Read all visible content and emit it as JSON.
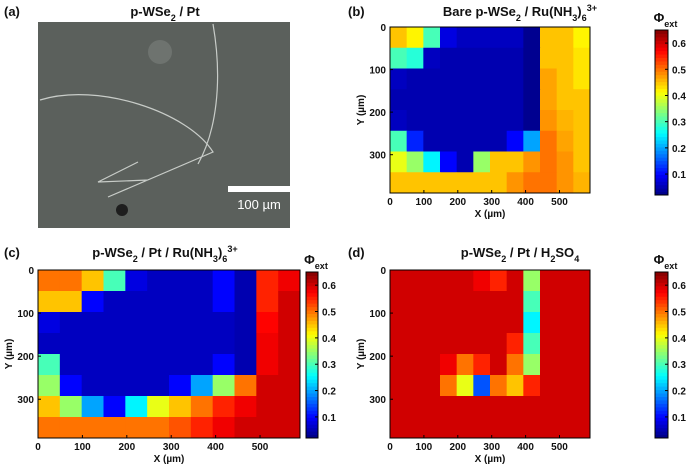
{
  "chart_data": [
    {
      "type": "image",
      "label": "(a)",
      "title": [
        {
          "text": "p-WSe"
        },
        {
          "text": "2",
          "shift": "sub"
        },
        {
          "text": " / Pt"
        }
      ],
      "scale_bar_label": "100 µm"
    },
    {
      "type": "heatmap",
      "label": "(b)",
      "title": [
        {
          "text": "Bare p-WSe"
        },
        {
          "text": "2",
          "shift": "sub"
        },
        {
          "text": " / Ru(NH"
        },
        {
          "text": "3",
          "shift": "sub"
        },
        {
          "text": ")"
        },
        {
          "text": "6",
          "shift": "sub"
        },
        {
          "text": "3+",
          "shift": "super"
        }
      ],
      "x_label": "X (µm)",
      "y_label": "Y (µm)",
      "colorbar_label": [
        {
          "text": "Φ"
        },
        {
          "text": "ext",
          "shift": "sub"
        }
      ],
      "xlim": [
        0,
        590
      ],
      "ylim": [
        0,
        390
      ],
      "xticks": [
        0,
        100,
        200,
        300,
        400,
        500
      ],
      "yticks": [
        0,
        100,
        200,
        300
      ],
      "colormap": "jet",
      "clim": [
        0.02,
        0.65
      ],
      "cticks": [
        0.1,
        0.2,
        0.3,
        0.4,
        0.5,
        0.6
      ],
      "z": [
        [
          0.45,
          0.42,
          0.3,
          0.08,
          0.06,
          0.06,
          0.06,
          0.06,
          0.03,
          0.45,
          0.45,
          0.42
        ],
        [
          0.3,
          0.28,
          0.06,
          0.05,
          0.05,
          0.05,
          0.05,
          0.05,
          0.03,
          0.45,
          0.45,
          0.43
        ],
        [
          0.06,
          0.05,
          0.05,
          0.05,
          0.05,
          0.05,
          0.05,
          0.05,
          0.03,
          0.47,
          0.45,
          0.43
        ],
        [
          0.05,
          0.05,
          0.05,
          0.05,
          0.05,
          0.05,
          0.05,
          0.05,
          0.03,
          0.47,
          0.45,
          0.45
        ],
        [
          0.06,
          0.05,
          0.05,
          0.05,
          0.05,
          0.05,
          0.05,
          0.05,
          0.03,
          0.48,
          0.46,
          0.45
        ],
        [
          0.3,
          0.12,
          0.05,
          0.05,
          0.05,
          0.05,
          0.05,
          0.1,
          0.2,
          0.5,
          0.47,
          0.45
        ],
        [
          0.4,
          0.35,
          0.25,
          0.1,
          0.05,
          0.35,
          0.45,
          0.45,
          0.48,
          0.5,
          0.48,
          0.45
        ],
        [
          0.45,
          0.45,
          0.45,
          0.45,
          0.45,
          0.45,
          0.45,
          0.48,
          0.5,
          0.5,
          0.48,
          0.46
        ]
      ]
    },
    {
      "type": "heatmap",
      "label": "(c)",
      "title": [
        {
          "text": "p-WSe"
        },
        {
          "text": "2",
          "shift": "sub"
        },
        {
          "text": " / Pt / Ru(NH"
        },
        {
          "text": "3",
          "shift": "sub"
        },
        {
          "text": ")"
        },
        {
          "text": "6",
          "shift": "sub"
        },
        {
          "text": "3+",
          "shift": "super"
        }
      ],
      "x_label": "X (µm)",
      "y_label": "Y (µm)",
      "colorbar_label": [
        {
          "text": "Φ"
        },
        {
          "text": "ext",
          "shift": "sub"
        }
      ],
      "xlim": [
        0,
        590
      ],
      "ylim": [
        0,
        390
      ],
      "xticks": [
        0,
        100,
        200,
        300,
        400,
        500
      ],
      "yticks": [
        0,
        100,
        200,
        300
      ],
      "colormap": "jet",
      "clim": [
        0.02,
        0.65
      ],
      "cticks": [
        0.1,
        0.2,
        0.3,
        0.4,
        0.5,
        0.6
      ],
      "z": [
        [
          0.5,
          0.5,
          0.45,
          0.3,
          0.08,
          0.06,
          0.06,
          0.06,
          0.1,
          0.05,
          0.55,
          0.58
        ],
        [
          0.45,
          0.45,
          0.1,
          0.06,
          0.06,
          0.06,
          0.06,
          0.06,
          0.1,
          0.05,
          0.55,
          0.6
        ],
        [
          0.08,
          0.06,
          0.06,
          0.06,
          0.06,
          0.06,
          0.06,
          0.06,
          0.06,
          0.05,
          0.57,
          0.6
        ],
        [
          0.06,
          0.06,
          0.06,
          0.06,
          0.06,
          0.06,
          0.06,
          0.06,
          0.06,
          0.05,
          0.58,
          0.6
        ],
        [
          0.3,
          0.06,
          0.06,
          0.06,
          0.06,
          0.06,
          0.06,
          0.06,
          0.1,
          0.05,
          0.58,
          0.6
        ],
        [
          0.35,
          0.1,
          0.06,
          0.06,
          0.06,
          0.06,
          0.1,
          0.2,
          0.35,
          0.5,
          0.6,
          0.6
        ],
        [
          0.45,
          0.35,
          0.2,
          0.1,
          0.25,
          0.4,
          0.45,
          0.5,
          0.55,
          0.58,
          0.6,
          0.6
        ],
        [
          0.5,
          0.5,
          0.5,
          0.5,
          0.5,
          0.5,
          0.52,
          0.55,
          0.58,
          0.6,
          0.6,
          0.6
        ]
      ]
    },
    {
      "type": "heatmap",
      "label": "(d)",
      "title": [
        {
          "text": "p-WSe"
        },
        {
          "text": "2",
          "shift": "sub"
        },
        {
          "text": " / Pt / H"
        },
        {
          "text": "2",
          "shift": "sub"
        },
        {
          "text": "SO"
        },
        {
          "text": "4",
          "shift": "sub"
        }
      ],
      "x_label": "X (µm)",
      "y_label": "Y (µm)",
      "colorbar_label": [
        {
          "text": "Φ"
        },
        {
          "text": "ext",
          "shift": "sub"
        }
      ],
      "xlim": [
        0,
        590
      ],
      "ylim": [
        0,
        390
      ],
      "xticks": [
        0,
        100,
        200,
        300,
        400,
        500
      ],
      "yticks": [
        0,
        100,
        200,
        300
      ],
      "colormap": "jet",
      "clim": [
        0.02,
        0.65
      ],
      "cticks": [
        0.1,
        0.2,
        0.3,
        0.4,
        0.5,
        0.6
      ],
      "z": [
        [
          0.6,
          0.6,
          0.6,
          0.6,
          0.6,
          0.58,
          0.55,
          0.6,
          0.35,
          0.6,
          0.6,
          0.6
        ],
        [
          0.6,
          0.6,
          0.6,
          0.6,
          0.6,
          0.6,
          0.6,
          0.6,
          0.3,
          0.6,
          0.6,
          0.6
        ],
        [
          0.6,
          0.6,
          0.6,
          0.6,
          0.6,
          0.6,
          0.6,
          0.6,
          0.25,
          0.6,
          0.6,
          0.6
        ],
        [
          0.6,
          0.6,
          0.6,
          0.6,
          0.6,
          0.6,
          0.6,
          0.55,
          0.3,
          0.6,
          0.6,
          0.6
        ],
        [
          0.6,
          0.6,
          0.6,
          0.58,
          0.5,
          0.55,
          0.6,
          0.5,
          0.35,
          0.6,
          0.6,
          0.6
        ],
        [
          0.6,
          0.6,
          0.6,
          0.5,
          0.4,
          0.15,
          0.5,
          0.45,
          0.55,
          0.6,
          0.6,
          0.6
        ],
        [
          0.6,
          0.6,
          0.6,
          0.6,
          0.6,
          0.6,
          0.6,
          0.6,
          0.6,
          0.6,
          0.6,
          0.6
        ],
        [
          0.6,
          0.6,
          0.6,
          0.6,
          0.6,
          0.6,
          0.6,
          0.6,
          0.6,
          0.6,
          0.6,
          0.6
        ]
      ]
    }
  ]
}
